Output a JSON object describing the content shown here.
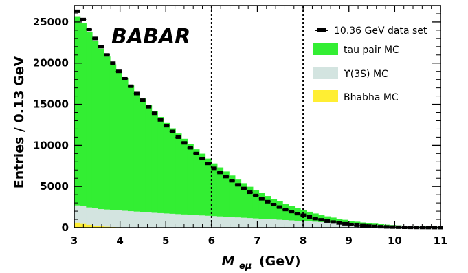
{
  "chart_data": {
    "type": "histogram",
    "ylabel": "Entries / 0.13 GeV",
    "xlabel_main": "M",
    "xlabel_sub": "eμ",
    "xlabel_unit": "(GeV)",
    "collaboration": "BABAR",
    "xlim": [
      3,
      11
    ],
    "ylim": [
      0,
      27000
    ],
    "xticks": [
      3,
      4,
      5,
      6,
      7,
      8,
      9,
      10,
      11
    ],
    "yticks": [
      0,
      5000,
      10000,
      15000,
      20000,
      25000
    ],
    "bin_width": 0.13,
    "vertical_lines": [
      6,
      8
    ],
    "colors": {
      "tau": "#33ee33",
      "upsilon": "#d3e4e0",
      "bhabha": "#ffee33",
      "data": "#000000"
    },
    "legend_position": "top-right",
    "series": [
      {
        "name": "10.36 GeV data set",
        "kind": "data",
        "values": [
          26300,
          25300,
          24100,
          23000,
          22000,
          21000,
          20000,
          19000,
          18100,
          17200,
          16300,
          15500,
          14700,
          13900,
          13100,
          12400,
          11700,
          11000,
          10300,
          9700,
          9000,
          8400,
          7800,
          7200,
          6700,
          6200,
          5700,
          5200,
          4750,
          4300,
          3900,
          3500,
          3150,
          2800,
          2500,
          2200,
          1950,
          1700,
          1500,
          1300,
          1100,
          950,
          800,
          680,
          570,
          470,
          380,
          300,
          240,
          190,
          150,
          115,
          90,
          70,
          55,
          42,
          32,
          24,
          18,
          13,
          9,
          6
        ]
      },
      {
        "name": "tau pair MC",
        "kind": "stack",
        "values": [
          23000,
          22300,
          21300,
          20400,
          19500,
          18600,
          17700,
          16900,
          16100,
          15300,
          14500,
          13800,
          13100,
          12400,
          11700,
          11000,
          10400,
          9800,
          9200,
          8600,
          8000,
          7500,
          6950,
          6400,
          5950,
          5500,
          5050,
          4600,
          4200,
          3800,
          3450,
          3100,
          2800,
          2500,
          2230,
          1970,
          1750,
          1530,
          1350,
          1170,
          1000,
          860,
          730,
          620,
          520,
          430,
          350,
          280,
          225,
          180,
          140,
          108,
          85,
          66,
          52,
          40,
          30,
          22,
          16,
          12,
          8,
          5
        ]
      },
      {
        "name": "ϒ(3S) MC",
        "kind": "stack",
        "values": [
          2700,
          2600,
          2450,
          2350,
          2250,
          2200,
          2150,
          2100,
          2050,
          2000,
          1950,
          1900,
          1850,
          1800,
          1760,
          1720,
          1680,
          1640,
          1600,
          1560,
          1520,
          1480,
          1440,
          1400,
          1360,
          1320,
          1280,
          1240,
          1200,
          1160,
          1120,
          1080,
          1040,
          1000,
          960,
          920,
          880,
          840,
          800,
          760,
          720,
          680,
          640,
          600,
          560,
          520,
          480,
          440,
          400,
          370,
          340,
          310,
          280,
          250,
          220,
          195,
          170,
          150,
          130,
          110,
          95,
          80
        ]
      },
      {
        "name": "Bhabha MC",
        "kind": "stack",
        "values": [
          600,
          450,
          350,
          250,
          180,
          120,
          80,
          50,
          30,
          20,
          10,
          5,
          3,
          2,
          1,
          1,
          0,
          0,
          0,
          0,
          0,
          0,
          0,
          0,
          0,
          0,
          0,
          0,
          0,
          0,
          0,
          0,
          0,
          0,
          0,
          0,
          0,
          0,
          0,
          0,
          0,
          0,
          0,
          0,
          0,
          0,
          0,
          0,
          0,
          0,
          0,
          0,
          0,
          0,
          0,
          0,
          0,
          0,
          0,
          0,
          0,
          0
        ]
      }
    ]
  }
}
